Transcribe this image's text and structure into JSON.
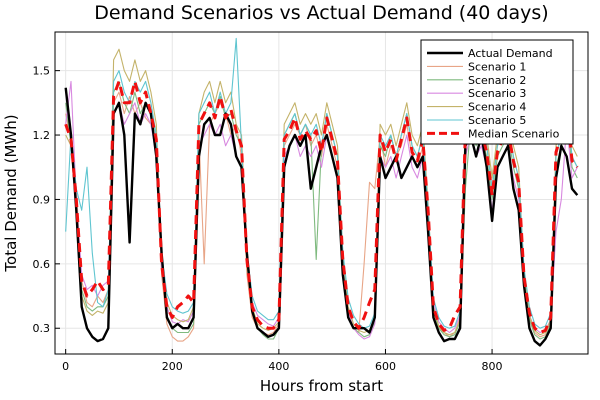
{
  "chart_data": {
    "type": "line",
    "title": "Demand Scenarios vs Actual Demand (40 days)",
    "xlabel": "Hours from start",
    "ylabel": "Total Demand (MWh)",
    "xlim": [
      -20,
      980
    ],
    "ylim": [
      0.18,
      1.68
    ],
    "x_ticks": [
      0,
      200,
      400,
      600,
      800
    ],
    "x_tick_labels": [
      "0",
      "200",
      "400",
      "600",
      "800"
    ],
    "y_ticks": [
      0.3,
      0.6,
      0.9,
      1.2,
      1.5
    ],
    "y_tick_labels": [
      "0.3",
      "0.6",
      "0.9",
      "1.2",
      "1.5"
    ],
    "grid": true,
    "legend_position": "top-right",
    "x": [
      0,
      10,
      20,
      30,
      40,
      50,
      60,
      70,
      80,
      90,
      100,
      110,
      120,
      130,
      140,
      150,
      160,
      170,
      180,
      190,
      200,
      210,
      220,
      230,
      240,
      250,
      260,
      270,
      280,
      290,
      300,
      310,
      320,
      330,
      340,
      350,
      360,
      370,
      380,
      390,
      400,
      410,
      420,
      430,
      440,
      450,
      460,
      470,
      480,
      490,
      500,
      510,
      520,
      530,
      540,
      550,
      560,
      570,
      580,
      590,
      600,
      610,
      620,
      630,
      640,
      650,
      660,
      670,
      680,
      690,
      700,
      710,
      720,
      730,
      740,
      750,
      760,
      770,
      780,
      790,
      800,
      810,
      820,
      830,
      840,
      850,
      860,
      870,
      880,
      890,
      900,
      910,
      920,
      930,
      940,
      950,
      960
    ],
    "series": [
      {
        "name": "Actual Demand",
        "color": "#000000",
        "width": 2.4,
        "dash": "",
        "values": [
          1.42,
          1.2,
          0.85,
          0.4,
          0.3,
          0.26,
          0.24,
          0.25,
          0.3,
          1.3,
          1.35,
          1.2,
          0.7,
          1.3,
          1.25,
          1.35,
          1.3,
          1.1,
          0.65,
          0.35,
          0.3,
          0.32,
          0.3,
          0.3,
          0.35,
          1.1,
          1.25,
          1.28,
          1.2,
          1.2,
          1.3,
          1.25,
          1.1,
          1.05,
          0.65,
          0.38,
          0.3,
          0.28,
          0.26,
          0.27,
          0.3,
          1.05,
          1.15,
          1.2,
          1.15,
          1.2,
          0.95,
          1.05,
          1.15,
          1.2,
          1.1,
          1.0,
          0.55,
          0.35,
          0.3,
          0.3,
          0.3,
          0.28,
          0.35,
          1.1,
          1.0,
          1.05,
          1.1,
          1.0,
          1.05,
          1.1,
          1.05,
          1.1,
          0.75,
          0.35,
          0.28,
          0.24,
          0.25,
          0.25,
          0.3,
          1.15,
          1.2,
          1.1,
          1.2,
          1.05,
          0.8,
          1.05,
          1.1,
          1.15,
          0.95,
          0.85,
          0.5,
          0.3,
          0.24,
          0.22,
          0.25,
          0.3,
          1.0,
          1.15,
          1.1,
          0.95,
          0.92
        ]
      },
      {
        "name": "Scenario 1",
        "color": "#e8a587",
        "width": 1.1,
        "dash": "",
        "values": [
          1.3,
          1.18,
          0.95,
          0.52,
          0.42,
          0.4,
          0.45,
          0.42,
          0.48,
          1.35,
          1.4,
          1.3,
          1.38,
          1.3,
          1.35,
          1.28,
          1.25,
          1.15,
          0.55,
          0.32,
          0.26,
          0.24,
          0.24,
          0.26,
          0.3,
          1.2,
          0.6,
          1.25,
          1.3,
          1.35,
          1.3,
          1.2,
          1.25,
          1.1,
          0.55,
          0.35,
          0.3,
          0.28,
          0.27,
          0.28,
          0.32,
          1.15,
          1.2,
          1.25,
          1.2,
          1.25,
          1.15,
          1.2,
          1.1,
          1.25,
          1.15,
          1.05,
          0.6,
          0.36,
          0.3,
          0.28,
          0.6,
          0.98,
          0.95,
          1.2,
          1.05,
          1.15,
          1.1,
          1.15,
          1.25,
          1.1,
          1.05,
          1.15,
          0.8,
          0.36,
          0.3,
          0.28,
          0.26,
          0.28,
          0.35,
          1.2,
          1.3,
          1.2,
          1.25,
          1.15,
          0.95,
          1.15,
          1.2,
          1.25,
          1.1,
          1.0,
          0.55,
          0.35,
          0.28,
          0.26,
          0.27,
          0.33,
          1.1,
          1.2,
          1.35,
          1.1,
          1.05
        ]
      },
      {
        "name": "Scenario 2",
        "color": "#7fba7f",
        "width": 1.1,
        "dash": "",
        "values": [
          1.35,
          1.15,
          0.9,
          0.48,
          0.4,
          0.38,
          0.4,
          0.4,
          0.45,
          1.4,
          1.45,
          1.35,
          1.3,
          1.4,
          1.3,
          1.35,
          1.3,
          1.2,
          0.6,
          0.36,
          0.3,
          0.28,
          0.28,
          0.28,
          0.32,
          1.25,
          1.3,
          1.35,
          1.3,
          1.38,
          1.28,
          1.3,
          1.2,
          1.15,
          0.6,
          0.38,
          0.3,
          0.27,
          0.25,
          0.25,
          0.3,
          1.2,
          1.25,
          1.3,
          1.2,
          1.25,
          1.2,
          0.62,
          1.15,
          1.3,
          1.2,
          1.1,
          0.62,
          0.38,
          0.3,
          0.28,
          0.26,
          0.27,
          0.33,
          1.15,
          1.1,
          1.2,
          1.1,
          1.2,
          1.3,
          1.15,
          1.1,
          1.2,
          0.85,
          0.38,
          0.3,
          0.27,
          0.26,
          0.27,
          0.33,
          0.95,
          1.25,
          1.15,
          1.2,
          1.1,
          0.9,
          1.1,
          1.15,
          1.2,
          1.05,
          0.95,
          0.52,
          0.34,
          0.27,
          0.25,
          0.26,
          0.32,
          1.05,
          1.15,
          1.3,
          1.05,
          1.0
        ]
      },
      {
        "name": "Scenario 3",
        "color": "#d889e0",
        "width": 1.1,
        "dash": "",
        "values": [
          1.25,
          1.45,
          0.9,
          0.55,
          0.48,
          0.5,
          0.45,
          0.5,
          0.52,
          1.3,
          1.35,
          1.25,
          1.3,
          1.35,
          1.25,
          1.3,
          1.25,
          1.1,
          0.58,
          0.4,
          0.33,
          0.32,
          0.34,
          0.33,
          0.38,
          1.15,
          1.2,
          1.25,
          1.2,
          1.25,
          1.15,
          1.2,
          1.1,
          1.05,
          0.62,
          0.42,
          0.36,
          0.34,
          0.32,
          0.31,
          0.35,
          1.1,
          1.15,
          1.2,
          1.1,
          1.15,
          1.1,
          1.15,
          1.05,
          1.2,
          1.1,
          1.0,
          0.58,
          0.38,
          0.3,
          0.27,
          0.25,
          0.26,
          0.32,
          1.1,
          1.05,
          1.1,
          1.0,
          1.1,
          1.2,
          1.05,
          1.0,
          1.1,
          0.8,
          0.42,
          0.33,
          0.3,
          0.28,
          0.3,
          0.36,
          1.1,
          1.2,
          1.1,
          1.15,
          1.05,
          0.85,
          1.05,
          1.1,
          1.15,
          1.0,
          0.9,
          0.52,
          0.36,
          0.3,
          0.28,
          0.29,
          0.34,
          0.75,
          0.9,
          1.25,
          1.0,
          1.05
        ]
      },
      {
        "name": "Scenario 4",
        "color": "#c4b36a",
        "width": 1.1,
        "dash": "",
        "values": [
          1.2,
          1.15,
          0.85,
          0.45,
          0.38,
          0.36,
          0.38,
          0.37,
          0.42,
          1.55,
          1.6,
          1.5,
          1.45,
          1.55,
          1.45,
          1.5,
          1.4,
          1.25,
          0.62,
          0.42,
          0.36,
          0.34,
          0.33,
          0.34,
          0.4,
          1.3,
          1.4,
          1.45,
          1.35,
          1.45,
          1.35,
          1.4,
          1.25,
          1.2,
          0.65,
          0.4,
          0.32,
          0.3,
          0.29,
          0.3,
          0.33,
          1.25,
          1.3,
          1.35,
          1.25,
          1.3,
          1.25,
          1.3,
          1.2,
          1.35,
          1.25,
          1.15,
          0.65,
          0.4,
          0.32,
          0.29,
          0.28,
          0.29,
          0.35,
          1.25,
          1.2,
          1.25,
          1.15,
          1.25,
          1.35,
          1.2,
          1.15,
          1.25,
          0.88,
          0.4,
          0.31,
          0.28,
          0.27,
          0.28,
          0.34,
          1.3,
          1.35,
          1.25,
          1.3,
          1.2,
          1.0,
          1.2,
          1.25,
          1.3,
          1.15,
          1.05,
          0.56,
          0.36,
          0.29,
          0.27,
          0.28,
          0.34,
          1.15,
          1.25,
          1.4,
          1.15,
          1.1
        ]
      },
      {
        "name": "Scenario 5",
        "color": "#5fc5d0",
        "width": 1.1,
        "dash": "",
        "values": [
          0.75,
          1.2,
          0.95,
          0.85,
          1.05,
          0.65,
          0.42,
          0.4,
          0.48,
          1.45,
          1.5,
          1.4,
          1.35,
          1.45,
          1.4,
          1.45,
          1.35,
          1.2,
          0.65,
          0.46,
          0.4,
          0.38,
          0.37,
          0.38,
          0.42,
          1.3,
          1.35,
          1.4,
          1.3,
          1.4,
          1.3,
          1.35,
          1.65,
          1.15,
          0.66,
          0.45,
          0.38,
          0.36,
          0.34,
          0.34,
          0.38,
          1.2,
          1.25,
          1.3,
          1.2,
          1.25,
          1.2,
          1.25,
          1.15,
          1.3,
          1.2,
          1.1,
          0.66,
          0.44,
          0.36,
          0.32,
          0.3,
          0.31,
          0.37,
          1.2,
          1.15,
          1.2,
          1.1,
          1.2,
          1.3,
          1.15,
          1.1,
          1.2,
          0.86,
          0.44,
          0.35,
          0.31,
          0.3,
          0.31,
          0.38,
          1.25,
          1.3,
          1.2,
          1.25,
          1.15,
          0.95,
          1.15,
          1.2,
          1.25,
          1.1,
          1.0,
          0.58,
          0.4,
          0.32,
          0.3,
          0.31,
          0.37,
          1.1,
          1.2,
          1.35,
          1.1,
          1.05
        ]
      },
      {
        "name": "Median Scenario",
        "color": "#f01010",
        "width": 3.0,
        "dash": "9,6",
        "values": [
          1.25,
          1.18,
          0.9,
          0.52,
          0.45,
          0.48,
          0.52,
          0.48,
          0.5,
          1.38,
          1.45,
          1.35,
          1.35,
          1.45,
          1.35,
          1.4,
          1.3,
          1.18,
          0.6,
          0.4,
          0.35,
          0.4,
          0.42,
          0.45,
          0.42,
          1.25,
          1.3,
          1.35,
          1.28,
          1.38,
          1.28,
          1.32,
          1.22,
          1.15,
          0.62,
          0.4,
          0.34,
          0.31,
          0.3,
          0.3,
          0.34,
          1.18,
          1.22,
          1.28,
          1.18,
          1.22,
          1.18,
          1.22,
          1.12,
          1.28,
          1.18,
          1.08,
          0.62,
          0.4,
          0.33,
          0.3,
          0.35,
          0.42,
          0.48,
          1.2,
          1.12,
          1.18,
          1.08,
          1.18,
          1.28,
          1.12,
          1.08,
          1.18,
          0.85,
          0.4,
          0.32,
          0.29,
          0.3,
          0.36,
          0.4,
          1.22,
          1.28,
          1.18,
          1.22,
          1.12,
          0.92,
          1.12,
          1.18,
          1.22,
          1.08,
          0.98,
          0.54,
          0.37,
          0.3,
          0.28,
          0.29,
          0.35,
          1.12,
          1.2,
          1.35,
          1.08,
          1.05
        ]
      }
    ]
  }
}
